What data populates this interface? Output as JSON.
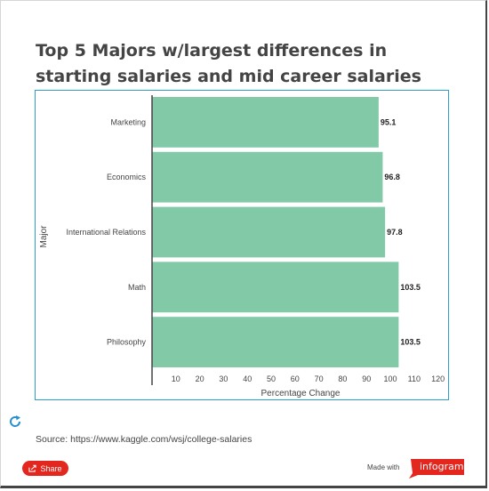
{
  "title": "Top 5 Majors w/largest differences in starting salaries and mid career salaries",
  "chart_data": {
    "type": "bar",
    "orientation": "horizontal",
    "categories": [
      "Marketing",
      "Economics",
      "International Relations",
      "Math",
      "Philosophy"
    ],
    "values": [
      95.1,
      96.8,
      97.8,
      103.5,
      103.5
    ],
    "value_labels": [
      "95.1",
      "96.8",
      "97.8",
      "103.5",
      "103.5"
    ],
    "xlabel": "Percentage Change",
    "ylabel": "Major",
    "xlim": [
      0,
      125
    ],
    "xticks": [
      10,
      20,
      30,
      40,
      50,
      60,
      70,
      80,
      90,
      100,
      110,
      120
    ],
    "grid": false,
    "bar_color": "#82c9a8",
    "frame_color": "#2aa1c8"
  },
  "footer": {
    "source": "Source: https://www.kaggle.com/wsj/college-salaries",
    "share_label": "Share",
    "made_with": "Made with",
    "brand": "infogram",
    "brand_color": "#e3261e"
  }
}
